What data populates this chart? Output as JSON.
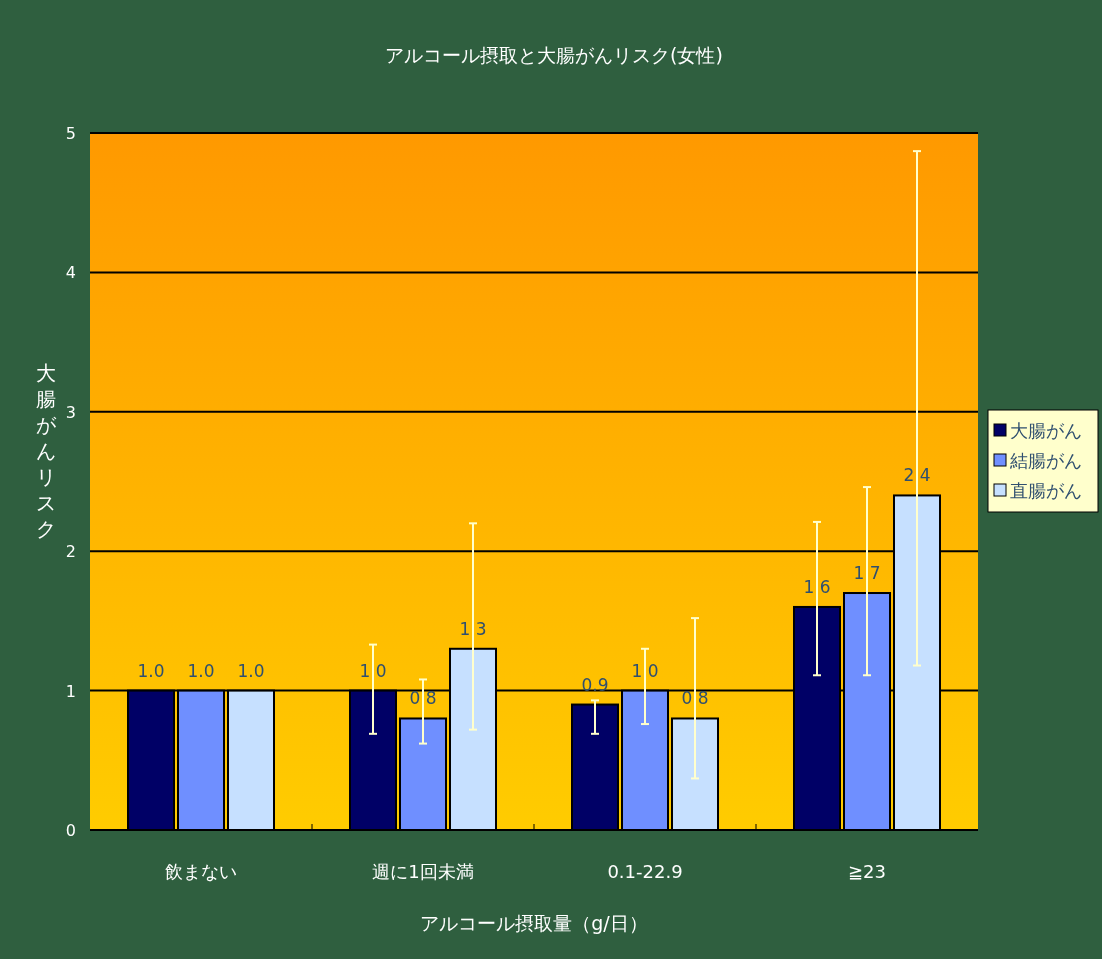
{
  "chart_data": {
    "type": "bar",
    "title": "アルコール摂取と大腸がんリスク(女性)",
    "xlabel": "アルコール摂取量（g/日）",
    "ylabel": "大腸がんリスク",
    "categories": [
      "飲まない",
      "週に1回未満",
      "0.1-22.9",
      "≧23"
    ],
    "series": [
      {
        "name": "大腸がん",
        "color": "#000066",
        "values": [
          1.0,
          1.0,
          0.9,
          1.6
        ],
        "value_labels": [
          "1.0",
          "1.0",
          "0.9",
          "1.6"
        ],
        "errors": [
          null,
          [
            0.69,
            1.33
          ],
          [
            0.69,
            0.93
          ],
          [
            1.11,
            2.21
          ]
        ]
      },
      {
        "name": "結腸がん",
        "color": "#6f8fff",
        "values": [
          1.0,
          0.8,
          1.0,
          1.7
        ],
        "value_labels": [
          "1.0",
          "0.8",
          "1.0",
          "1.7"
        ],
        "errors": [
          null,
          [
            0.62,
            1.08
          ],
          [
            0.76,
            1.3
          ],
          [
            1.11,
            2.46
          ]
        ]
      },
      {
        "name": "直腸がん",
        "color": "#c6e0ff",
        "values": [
          1.0,
          1.3,
          0.8,
          2.4
        ],
        "value_labels": [
          "1.0",
          "1.3",
          "0.8",
          "2.4"
        ],
        "errors": [
          null,
          [
            0.72,
            2.2
          ],
          [
            0.37,
            1.52
          ],
          [
            1.18,
            4.87
          ]
        ]
      }
    ],
    "ylim": [
      0,
      5
    ],
    "yticks": [
      0,
      1,
      2,
      3,
      4,
      5
    ],
    "grid": "y",
    "legend": "right"
  }
}
